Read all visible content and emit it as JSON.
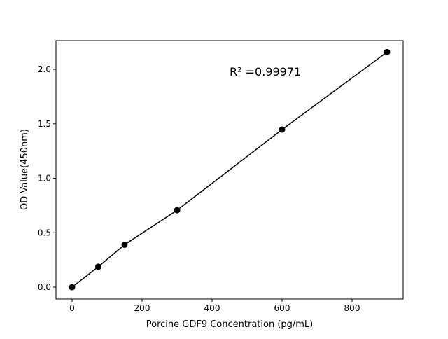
{
  "chart_data": {
    "type": "line",
    "title": "",
    "xlabel": "Porcine GDF9 Concentration (pg/mL)",
    "ylabel": "OD Value(450nm)",
    "annotation": "R² =0.99971",
    "x": [
      0,
      75,
      150,
      300,
      600,
      900
    ],
    "y": [
      0.0,
      0.188,
      0.39,
      0.707,
      1.447,
      2.159
    ],
    "xlim": [
      -46,
      946
    ],
    "ylim": [
      -0.109,
      2.264
    ],
    "xticks": [
      0,
      200,
      400,
      600,
      800
    ],
    "xtick_labels": [
      "0",
      "200",
      "400",
      "600",
      "800"
    ],
    "yticks": [
      0.0,
      0.5,
      1.0,
      1.5,
      2.0
    ],
    "ytick_labels": [
      "0.0",
      "0.5",
      "1.0",
      "1.5",
      "2.0"
    ],
    "grid": false,
    "line_color": "#000000",
    "marker_color": "#000000"
  }
}
